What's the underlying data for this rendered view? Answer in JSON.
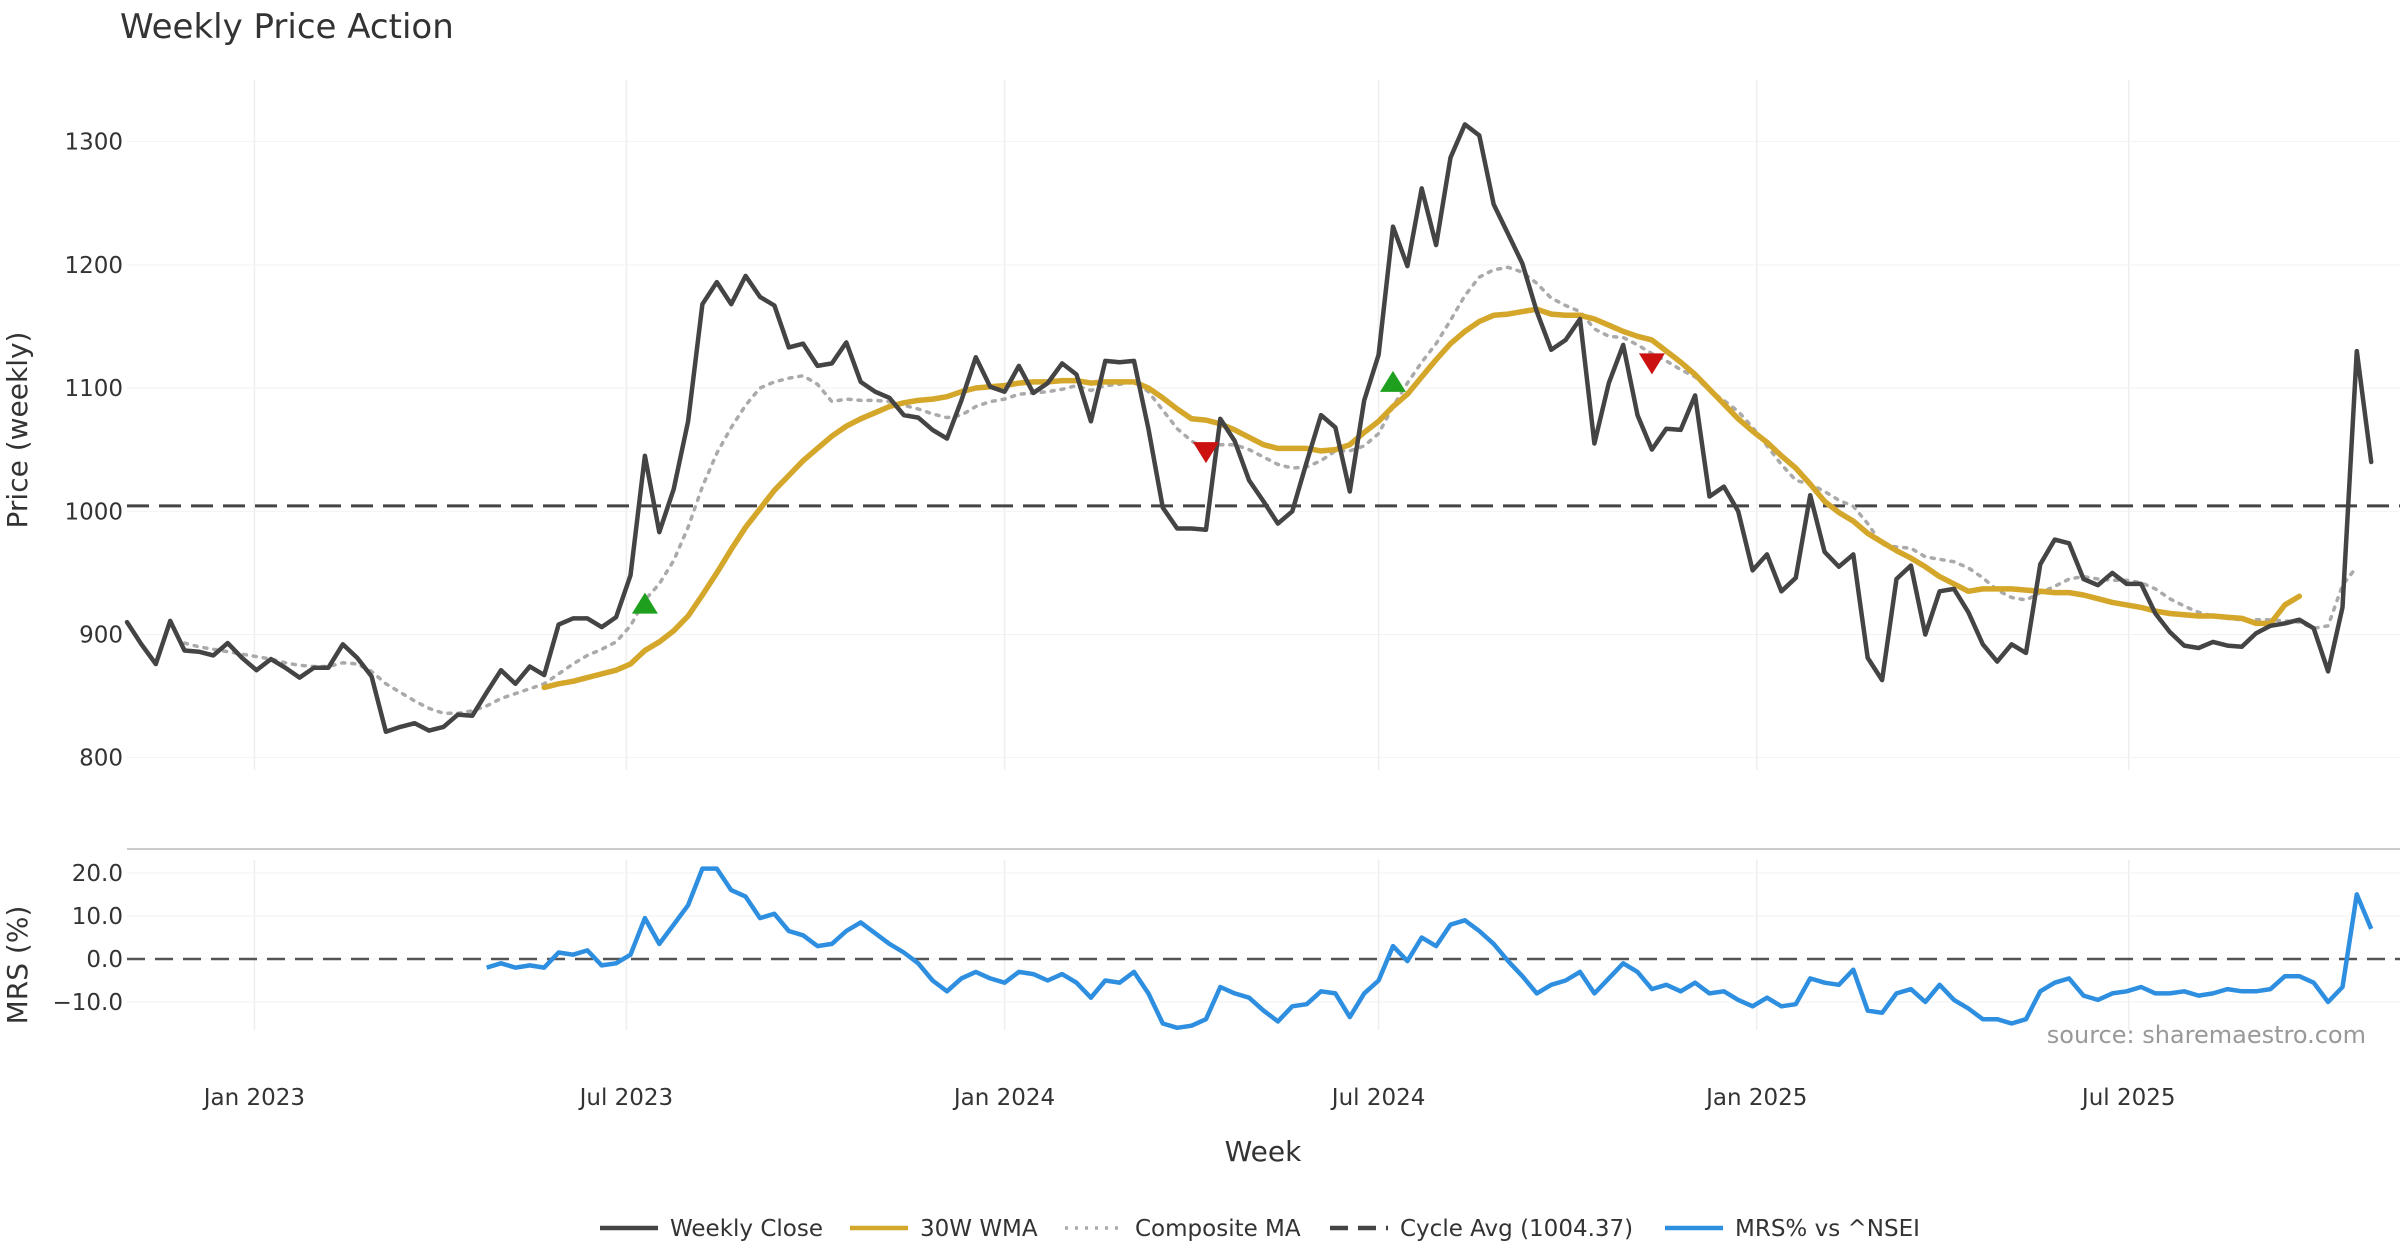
{
  "chart_data": [
    {
      "panel": "price",
      "type": "line",
      "title": "Weekly Price Action",
      "ylabel": "Price (weekly)",
      "xlabel": "Week",
      "x_start": "2022-10-31",
      "x_step_days": 7,
      "xlim": [
        "2022-10-31",
        "2025-11-10"
      ],
      "ylim": [
        790,
        1350
      ],
      "yticks": [
        800,
        900,
        1000,
        1100,
        1200,
        1300
      ],
      "xticks": [
        {
          "label": "Jan 2023",
          "date": "2023-01-01"
        },
        {
          "label": "Jul 2023",
          "date": "2023-07-01"
        },
        {
          "label": "Jan 2024",
          "date": "2024-01-01"
        },
        {
          "label": "Jul 2024",
          "date": "2024-07-01"
        },
        {
          "label": "Jan 2025",
          "date": "2025-01-01"
        },
        {
          "label": "Jul 2025",
          "date": "2025-07-01"
        }
      ],
      "grid": true,
      "reference_line": {
        "name": "Cycle Avg (1004.37)",
        "value": 1004.37
      },
      "series": [
        {
          "name": "Weekly Close",
          "color": "#444444",
          "style": "solid",
          "values": [
            910,
            892,
            876,
            911,
            887,
            886,
            883,
            893,
            881,
            871,
            880,
            873,
            865,
            873,
            873,
            892,
            881,
            866,
            821,
            825,
            828,
            822,
            825,
            835,
            834,
            853,
            871,
            860,
            874,
            867,
            908,
            913,
            913,
            906,
            914,
            948,
            1045,
            983,
            1018,
            1073,
            1168,
            1186,
            1168,
            1191,
            1174,
            1167,
            1133,
            1136,
            1118,
            1120,
            1137,
            1105,
            1097,
            1092,
            1078,
            1076,
            1066,
            1059,
            1090,
            1125,
            1101,
            1097,
            1118,
            1096,
            1104,
            1120,
            1111,
            1073,
            1122,
            1121,
            1122,
            1067,
            1003,
            986,
            986,
            985,
            1075,
            1057,
            1025,
            1008,
            990,
            1000,
            1040,
            1078,
            1068,
            1016,
            1090,
            1127,
            1231,
            1199,
            1262,
            1216,
            1287,
            1314,
            1305,
            1249,
            1225,
            1201,
            1162,
            1131,
            1139,
            1156,
            1055,
            1104,
            1135,
            1078,
            1050,
            1067,
            1066,
            1094,
            1012,
            1020,
            1000,
            952,
            965,
            935,
            946,
            1013,
            967,
            955,
            965,
            881,
            863,
            945,
            956,
            900,
            935,
            937,
            918,
            892,
            878,
            892,
            885,
            957,
            977,
            974,
            945,
            940,
            950,
            941,
            941,
            917,
            902,
            891,
            889,
            894,
            891,
            890,
            901,
            907,
            909,
            912,
            905,
            870,
            922,
            1130,
            1040
          ]
        },
        {
          "name": "30W WMA",
          "color": "#D4A62A",
          "style": "solid",
          "start_index": 29,
          "values": [
            857,
            860,
            862,
            865,
            868,
            871,
            876,
            887,
            894,
            903,
            915,
            932,
            950,
            969,
            987,
            1002,
            1017,
            1029,
            1041,
            1051,
            1061,
            1069,
            1075,
            1080,
            1085,
            1088,
            1090,
            1091,
            1093,
            1097,
            1100,
            1101,
            1102,
            1104,
            1105,
            1105,
            1106,
            1106,
            1104,
            1105,
            1105,
            1105,
            1100,
            1092,
            1083,
            1075,
            1074,
            1071,
            1066,
            1060,
            1054,
            1051,
            1051,
            1051,
            1049,
            1050,
            1054,
            1064,
            1073,
            1085,
            1095,
            1109,
            1123,
            1136,
            1146,
            1154,
            1159,
            1160,
            1162,
            1164,
            1160,
            1159,
            1159,
            1156,
            1151,
            1146,
            1142,
            1139,
            1130,
            1121,
            1111,
            1099,
            1087,
            1075,
            1065,
            1056,
            1045,
            1035,
            1022,
            1008,
            999,
            992,
            982,
            975,
            968,
            962,
            955,
            947,
            941,
            935,
            937,
            937,
            937,
            936,
            935,
            934,
            934,
            932,
            929,
            926,
            924,
            922,
            919,
            917,
            916,
            915,
            915,
            914,
            913,
            909,
            909,
            924,
            931
          ]
        },
        {
          "name": "Composite MA",
          "color": "#AAAAAA",
          "style": "dotted",
          "values": [
            null,
            null,
            null,
            null,
            893,
            890,
            888,
            886,
            884,
            882,
            880,
            877,
            875,
            874,
            874,
            877,
            876,
            870,
            860,
            853,
            846,
            840,
            836,
            836,
            838,
            842,
            848,
            852,
            856,
            860,
            868,
            876,
            883,
            888,
            894,
            907,
            928,
            941,
            960,
            987,
            1020,
            1047,
            1068,
            1086,
            1100,
            1105,
            1108,
            1110,
            1103,
            1089,
            1091,
            1090,
            1090,
            1089,
            1086,
            1083,
            1079,
            1076,
            1078,
            1085,
            1089,
            1091,
            1095,
            1096,
            1097,
            1099,
            1102,
            1098,
            1102,
            1103,
            1105,
            1097,
            1082,
            1067,
            1057,
            1050,
            1054,
            1054,
            1050,
            1044,
            1038,
            1035,
            1036,
            1041,
            1049,
            1049,
            1053,
            1063,
            1085,
            1104,
            1121,
            1136,
            1155,
            1175,
            1190,
            1196,
            1198,
            1194,
            1185,
            1173,
            1167,
            1162,
            1148,
            1142,
            1141,
            1135,
            1128,
            1122,
            1115,
            1109,
            1098,
            1090,
            1081,
            1068,
            1053,
            1038,
            1025,
            1022,
            1016,
            1009,
            1004,
            990,
            973,
            971,
            970,
            963,
            961,
            959,
            954,
            946,
            936,
            930,
            928,
            934,
            939,
            945,
            947,
            945,
            944,
            944,
            942,
            937,
            929,
            923,
            918,
            915,
            913,
            912,
            912,
            912,
            911,
            910,
            905,
            907,
            940,
            955
          ]
        }
      ],
      "markers": [
        {
          "type": "buy",
          "shape": "triangle-up",
          "color": "#1EA01E",
          "index": 36,
          "value": 925
        },
        {
          "type": "sell",
          "shape": "triangle-down",
          "color": "#CC1111",
          "index": 75,
          "value": 1048
        },
        {
          "type": "buy",
          "shape": "triangle-up",
          "color": "#1EA01E",
          "index": 88,
          "value": 1105
        },
        {
          "type": "sell",
          "shape": "triangle-down",
          "color": "#CC1111",
          "index": 106,
          "value": 1120
        }
      ]
    },
    {
      "panel": "mrs",
      "type": "line",
      "ylabel": "MRS (%)",
      "xlabel": "Week",
      "ylim": [
        -16.5,
        23
      ],
      "yticks": [
        {
          "value": 20,
          "label": "20.0"
        },
        {
          "value": 10,
          "label": "10.0"
        },
        {
          "value": 0,
          "label": "0.0"
        },
        {
          "value": -10,
          "label": "−10.0"
        }
      ],
      "reference_line": {
        "value": 0
      },
      "series": [
        {
          "name": "MRS% vs ^NSEI",
          "color": "#2E8FE0",
          "style": "solid",
          "start_index": 25,
          "values": [
            -2,
            -1,
            -2,
            -1.5,
            -2,
            1.5,
            1,
            2,
            -1.5,
            -1,
            1,
            9.5,
            3.5,
            8,
            12.5,
            21,
            21,
            16,
            14.5,
            9.5,
            10.5,
            6.5,
            5.5,
            3,
            3.5,
            6.5,
            8.5,
            6,
            3.5,
            1.5,
            -1,
            -5,
            -7.5,
            -4.5,
            -3,
            -4.5,
            -5.5,
            -3,
            -3.5,
            -5,
            -3.5,
            -5.5,
            -9,
            -5,
            -5.5,
            -3,
            -8,
            -15,
            -16,
            -15.5,
            -14,
            -6.5,
            -8,
            -9,
            -12,
            -14.5,
            -11,
            -10.5,
            -7.5,
            -8,
            -13.5,
            -8,
            -5,
            3,
            -0.5,
            5,
            3,
            8,
            9,
            6.5,
            3.5,
            -0.5,
            -4,
            -8,
            -6,
            -5,
            -3,
            -8,
            -4.5,
            -1,
            -3,
            -7,
            -6,
            -7.5,
            -5.5,
            -8,
            -7.5,
            -9.5,
            -11,
            -9,
            -11,
            -10.5,
            -4.5,
            -5.5,
            -6,
            -2.5,
            -12,
            -12.5,
            -8,
            -7,
            -10,
            -6,
            -9.5,
            -11.5,
            -14,
            -14,
            -15,
            -14,
            -7.5,
            -5.5,
            -4.5,
            -8.5,
            -9.5,
            -8,
            -7.5,
            -6.5,
            -8,
            -8,
            -7.5,
            -8.5,
            -8,
            -7,
            -7.5,
            -7.5,
            -7,
            -4,
            -4,
            -5.5,
            -10,
            -6.5,
            15,
            7
          ]
        }
      ]
    }
  ],
  "legend": [
    {
      "label": "Weekly Close",
      "color": "#444444",
      "style": "solid"
    },
    {
      "label": "30W WMA",
      "color": "#D4A62A",
      "style": "solid"
    },
    {
      "label": "Composite MA",
      "color": "#AAAAAA",
      "style": "dotted"
    },
    {
      "label": "Cycle Avg (1004.37)",
      "color": "#444444",
      "style": "dashed"
    },
    {
      "label": "MRS% vs ^NSEI",
      "color": "#2E8FE0",
      "style": "solid"
    }
  ],
  "watermark": "source: sharemaestro.com"
}
